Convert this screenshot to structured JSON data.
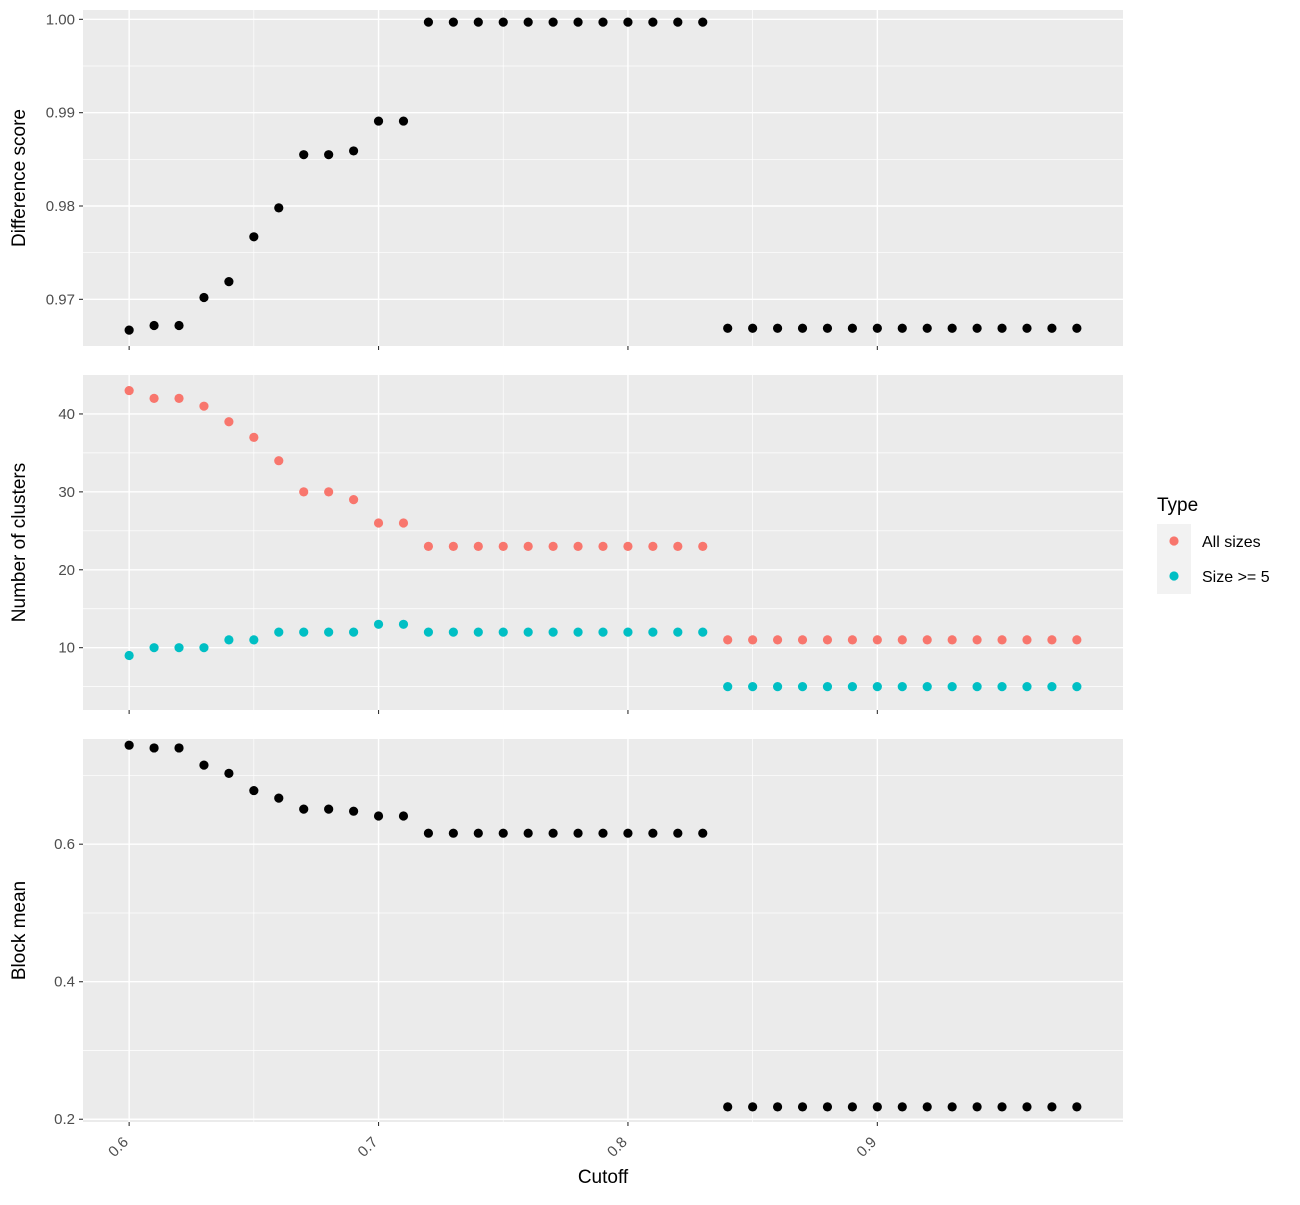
{
  "chart_data": [
    {
      "type": "scatter",
      "ylabel": "Difference score",
      "ylim": [
        0.965,
        1.001
      ],
      "yticks": [
        0.97,
        0.98,
        0.99,
        1.0
      ],
      "ytick_labels": [
        "0.97",
        "0.98",
        "0.99",
        "1.00"
      ],
      "point_color": "#000000",
      "series": [
        {
          "x": [
            0.6,
            0.61,
            0.62,
            0.63,
            0.64,
            0.65,
            0.66,
            0.67,
            0.68,
            0.69,
            0.7,
            0.71,
            0.72,
            0.73,
            0.74,
            0.75,
            0.76,
            0.77,
            0.78,
            0.79,
            0.8,
            0.81,
            0.82,
            0.83,
            0.84,
            0.85,
            0.86,
            0.87,
            0.88,
            0.89,
            0.9,
            0.91,
            0.92,
            0.93,
            0.94,
            0.95,
            0.96,
            0.97,
            0.98
          ],
          "values": [
            0.9667,
            0.9672,
            0.9672,
            0.9702,
            0.9719,
            0.9767,
            0.9798,
            0.9855,
            0.9855,
            0.9859,
            0.9891,
            0.9891,
            0.9997,
            0.9997,
            0.9997,
            0.9997,
            0.9997,
            0.9997,
            0.9997,
            0.9997,
            0.9997,
            0.9997,
            0.9997,
            0.9997,
            0.9669,
            0.9669,
            0.9669,
            0.9669,
            0.9669,
            0.9669,
            0.9669,
            0.9669,
            0.9669,
            0.9669,
            0.9669,
            0.9669,
            0.9669,
            0.9669,
            0.9669
          ]
        }
      ]
    },
    {
      "type": "scatter",
      "ylabel": "Number of clusters",
      "ylim": [
        2,
        45
      ],
      "yticks": [
        10,
        20,
        30,
        40
      ],
      "ytick_labels": [
        "10",
        "20",
        "30",
        "40"
      ],
      "legend": {
        "title": "Type",
        "position": "right"
      },
      "series": [
        {
          "name": "All sizes",
          "color": "#F8766D",
          "x": [
            0.6,
            0.61,
            0.62,
            0.63,
            0.64,
            0.65,
            0.66,
            0.67,
            0.68,
            0.69,
            0.7,
            0.71,
            0.72,
            0.73,
            0.74,
            0.75,
            0.76,
            0.77,
            0.78,
            0.79,
            0.8,
            0.81,
            0.82,
            0.83,
            0.84,
            0.85,
            0.86,
            0.87,
            0.88,
            0.89,
            0.9,
            0.91,
            0.92,
            0.93,
            0.94,
            0.95,
            0.96,
            0.97,
            0.98
          ],
          "values": [
            43,
            42,
            42,
            41,
            39,
            37,
            34,
            30,
            30,
            29,
            26,
            26,
            23,
            23,
            23,
            23,
            23,
            23,
            23,
            23,
            23,
            23,
            23,
            23,
            11,
            11,
            11,
            11,
            11,
            11,
            11,
            11,
            11,
            11,
            11,
            11,
            11,
            11,
            11
          ]
        },
        {
          "name": "Size >= 5",
          "color": "#00BFC4",
          "x": [
            0.6,
            0.61,
            0.62,
            0.63,
            0.64,
            0.65,
            0.66,
            0.67,
            0.68,
            0.69,
            0.7,
            0.71,
            0.72,
            0.73,
            0.74,
            0.75,
            0.76,
            0.77,
            0.78,
            0.79,
            0.8,
            0.81,
            0.82,
            0.83,
            0.84,
            0.85,
            0.86,
            0.87,
            0.88,
            0.89,
            0.9,
            0.91,
            0.92,
            0.93,
            0.94,
            0.95,
            0.96,
            0.97,
            0.98
          ],
          "values": [
            9,
            10,
            10,
            10,
            11,
            11,
            12,
            12,
            12,
            12,
            13,
            13,
            12,
            12,
            12,
            12,
            12,
            12,
            12,
            12,
            12,
            12,
            12,
            12,
            5,
            5,
            5,
            5,
            5,
            5,
            5,
            5,
            5,
            5,
            5,
            5,
            5,
            5,
            5
          ]
        }
      ]
    },
    {
      "type": "scatter",
      "ylabel": "Block mean",
      "xlabel": "Cutoff",
      "ylim": [
        0.196,
        0.753
      ],
      "yticks": [
        0.2,
        0.4,
        0.6
      ],
      "ytick_labels": [
        "0.2",
        "0.4",
        "0.6"
      ],
      "point_color": "#000000",
      "series": [
        {
          "x": [
            0.6,
            0.61,
            0.62,
            0.63,
            0.64,
            0.65,
            0.66,
            0.67,
            0.68,
            0.69,
            0.7,
            0.71,
            0.72,
            0.73,
            0.74,
            0.75,
            0.76,
            0.77,
            0.78,
            0.79,
            0.8,
            0.81,
            0.82,
            0.83,
            0.84,
            0.85,
            0.86,
            0.87,
            0.88,
            0.89,
            0.9,
            0.91,
            0.92,
            0.93,
            0.94,
            0.95,
            0.96,
            0.97,
            0.98
          ],
          "values": [
            0.744,
            0.74,
            0.74,
            0.715,
            0.703,
            0.678,
            0.667,
            0.651,
            0.651,
            0.648,
            0.641,
            0.641,
            0.616,
            0.616,
            0.616,
            0.616,
            0.616,
            0.616,
            0.616,
            0.616,
            0.616,
            0.616,
            0.616,
            0.616,
            0.218,
            0.218,
            0.218,
            0.218,
            0.218,
            0.218,
            0.218,
            0.218,
            0.218,
            0.218,
            0.218,
            0.218,
            0.218,
            0.218,
            0.218
          ]
        }
      ]
    }
  ],
  "x_axis": {
    "label": "Cutoff",
    "range": [
      0.5815,
      0.9985
    ],
    "ticks": [
      0.6,
      0.7,
      0.8,
      0.9
    ],
    "tick_labels": [
      "0.6",
      "0.7",
      "0.8",
      "0.9"
    ]
  },
  "legend": {
    "title": "Type",
    "items": [
      {
        "label": "All sizes",
        "color": "#F8766D"
      },
      {
        "label": "Size >= 5",
        "color": "#00BFC4"
      }
    ]
  },
  "colors": {
    "panel_background": "#EBEBEB",
    "grid": "#FFFFFF",
    "axis_text": "#4D4D4D"
  }
}
